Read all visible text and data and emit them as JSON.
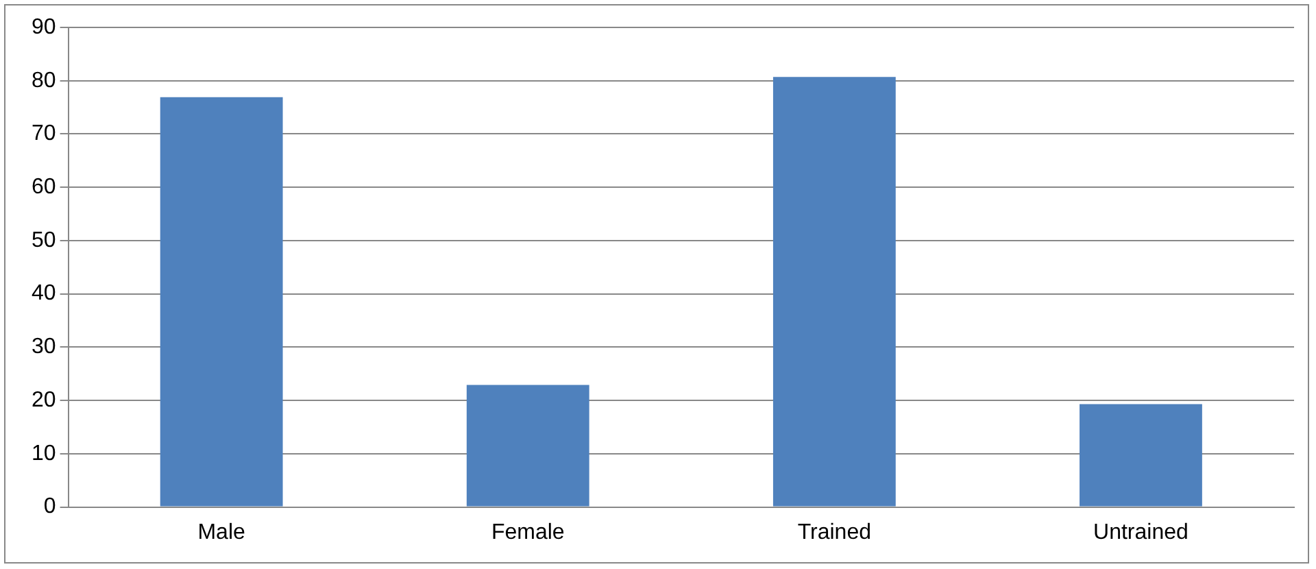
{
  "chart_data": {
    "type": "bar",
    "categories": [
      "Male",
      "Female",
      "Trained",
      "Untrained"
    ],
    "values": [
      76.9,
      22.9,
      80.7,
      19.3
    ],
    "color": "#4f81bd",
    "ylim": [
      0,
      90
    ],
    "yticks": [
      0,
      10,
      20,
      30,
      40,
      50,
      60,
      70,
      80,
      90
    ],
    "grid": "y",
    "legend": false
  }
}
